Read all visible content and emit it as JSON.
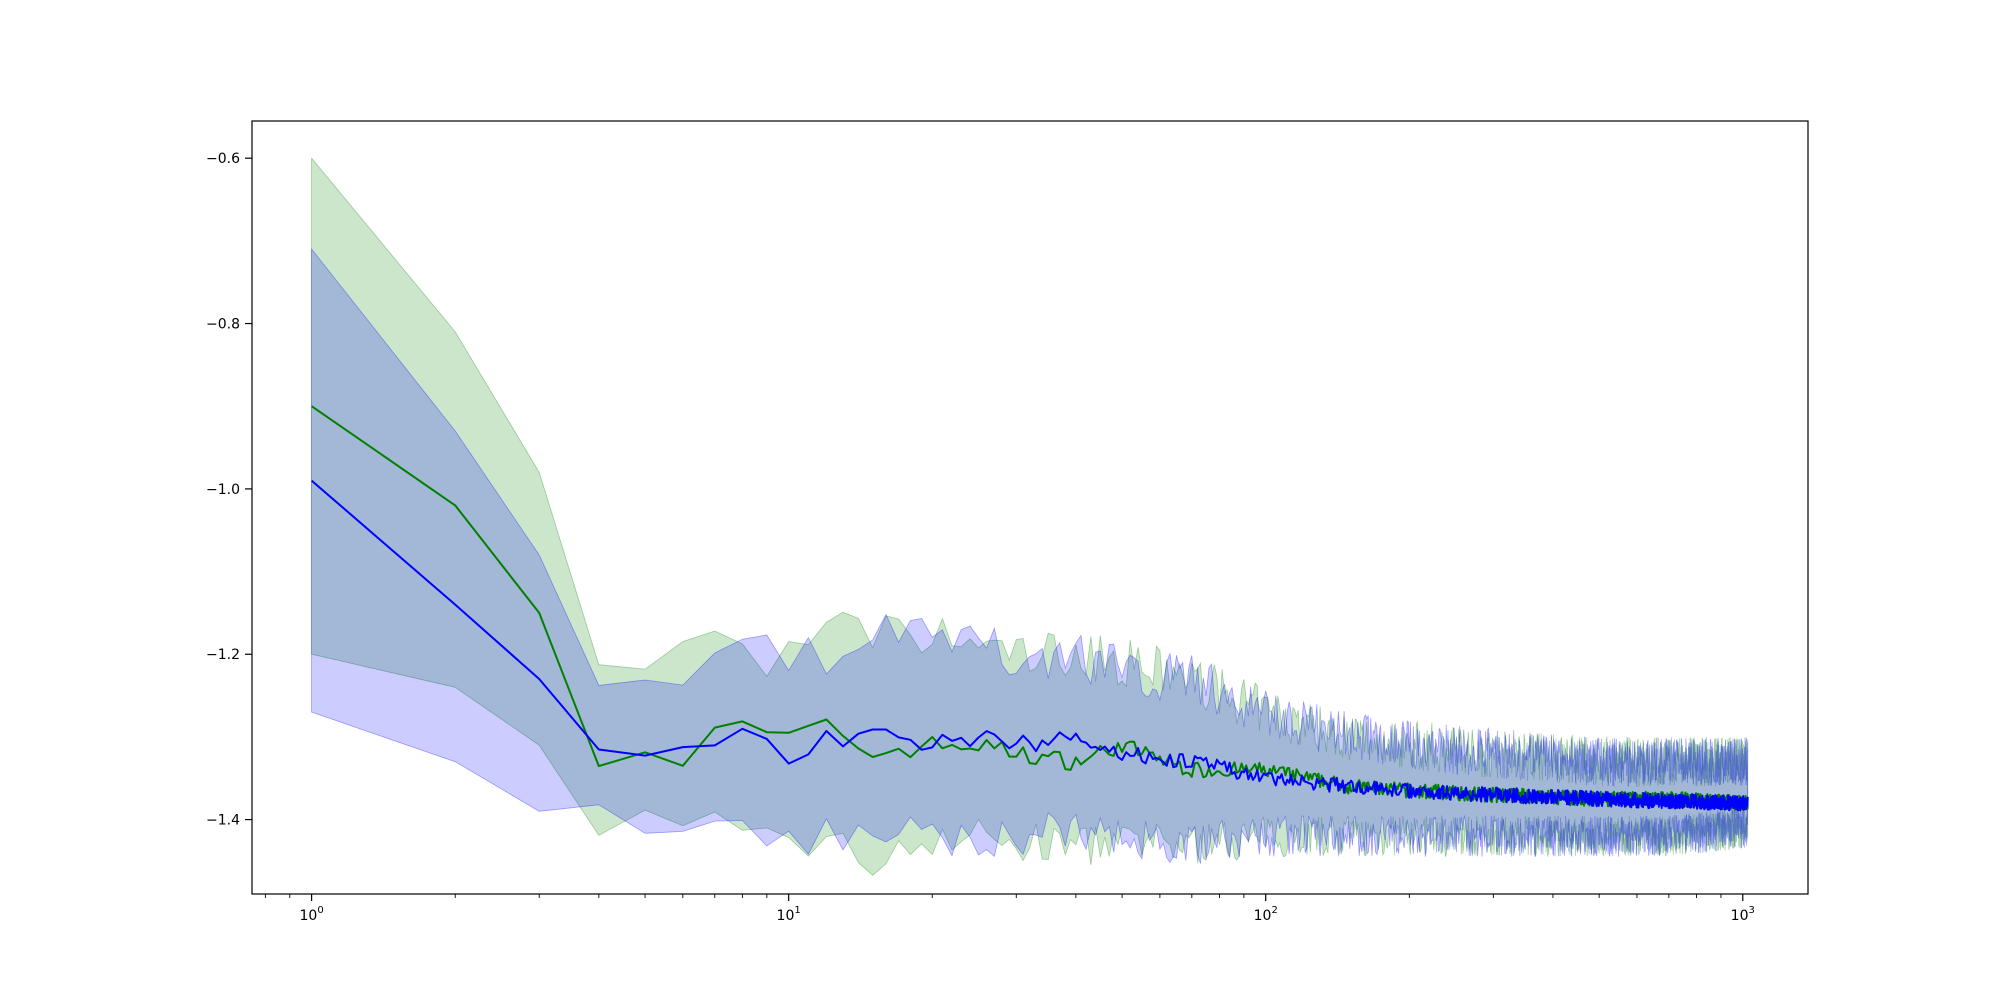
{
  "chart_data": {
    "type": "line",
    "title": "",
    "xlabel": "",
    "ylabel": "",
    "xscale": "log",
    "xlim": [
      0.75,
      1370
    ],
    "ylim": [
      -1.49,
      -0.555
    ],
    "grid": false,
    "legend": "none",
    "x_ticks": [
      {
        "base": "10",
        "exp": "0",
        "value": 1
      },
      {
        "base": "10",
        "exp": "1",
        "value": 10
      },
      {
        "base": "10",
        "exp": "2",
        "value": 100
      },
      {
        "base": "10",
        "exp": "3",
        "value": 1000
      }
    ],
    "y_ticks": [
      {
        "label": "−0.6",
        "value": -0.6
      },
      {
        "label": "−0.8",
        "value": -0.8
      },
      {
        "label": "−1.0",
        "value": -1.0
      },
      {
        "label": "−1.2",
        "value": -1.2
      },
      {
        "label": "−1.4",
        "value": -1.4
      }
    ],
    "series": [
      {
        "color": "#008000",
        "band_fill": "rgba(0,128,0,0.2)",
        "band_stroke": "rgba(0,128,0,0.35)",
        "x": [
          1,
          2,
          3,
          4,
          5,
          6,
          7,
          8,
          9,
          10,
          12,
          15,
          20,
          25,
          30,
          40,
          50,
          70,
          100,
          150,
          200,
          300,
          500,
          700,
          1000,
          1024
        ],
        "y": [
          -0.9,
          -1.02,
          -1.15,
          -1.32,
          -1.31,
          -1.33,
          -1.29,
          -1.29,
          -1.3,
          -1.3,
          -1.29,
          -1.32,
          -1.31,
          -1.31,
          -1.32,
          -1.33,
          -1.31,
          -1.34,
          -1.34,
          -1.36,
          -1.365,
          -1.37,
          -1.375,
          -1.375,
          -1.38,
          -1.38
        ],
        "lower": [
          -1.2,
          -1.24,
          -1.31,
          -1.44,
          -1.4,
          -1.42,
          -1.4,
          -1.4,
          -1.42,
          -1.42,
          -1.43,
          -1.45,
          -1.42,
          -1.42,
          -1.43,
          -1.43,
          -1.43,
          -1.43,
          -1.42,
          -1.42,
          -1.42,
          -1.42,
          -1.42,
          -1.42,
          -1.41,
          -1.41
        ],
        "upper": [
          -0.6,
          -0.81,
          -0.98,
          -1.2,
          -1.22,
          -1.2,
          -1.18,
          -1.18,
          -1.2,
          -1.21,
          -1.17,
          -1.18,
          -1.18,
          -1.19,
          -1.2,
          -1.2,
          -1.21,
          -1.23,
          -1.27,
          -1.3,
          -1.31,
          -1.32,
          -1.33,
          -1.33,
          -1.33,
          -1.33
        ]
      },
      {
        "color": "#0000ff",
        "band_fill": "rgba(0,0,255,0.2)",
        "band_stroke": "rgba(0,0,255,0.35)",
        "x": [
          1,
          2,
          3,
          4,
          5,
          6,
          7,
          8,
          9,
          10,
          12,
          15,
          20,
          25,
          30,
          40,
          50,
          70,
          100,
          150,
          200,
          300,
          500,
          700,
          1000,
          1024
        ],
        "y": [
          -0.99,
          -1.14,
          -1.23,
          -1.3,
          -1.31,
          -1.3,
          -1.3,
          -1.3,
          -1.31,
          -1.32,
          -1.3,
          -1.3,
          -1.31,
          -1.3,
          -1.31,
          -1.3,
          -1.32,
          -1.33,
          -1.35,
          -1.36,
          -1.365,
          -1.37,
          -1.375,
          -1.378,
          -1.38,
          -1.38
        ],
        "lower": [
          -1.27,
          -1.33,
          -1.39,
          -1.39,
          -1.4,
          -1.41,
          -1.42,
          -1.4,
          -1.41,
          -1.42,
          -1.42,
          -1.41,
          -1.42,
          -1.42,
          -1.42,
          -1.41,
          -1.42,
          -1.43,
          -1.42,
          -1.42,
          -1.42,
          -1.42,
          -1.42,
          -1.42,
          -1.41,
          -1.41
        ],
        "upper": [
          -0.71,
          -0.93,
          -1.08,
          -1.21,
          -1.22,
          -1.25,
          -1.18,
          -1.18,
          -1.2,
          -1.21,
          -1.2,
          -1.18,
          -1.18,
          -1.19,
          -1.2,
          -1.2,
          -1.22,
          -1.23,
          -1.27,
          -1.3,
          -1.31,
          -1.32,
          -1.33,
          -1.33,
          -1.33,
          -1.33
        ]
      }
    ]
  }
}
